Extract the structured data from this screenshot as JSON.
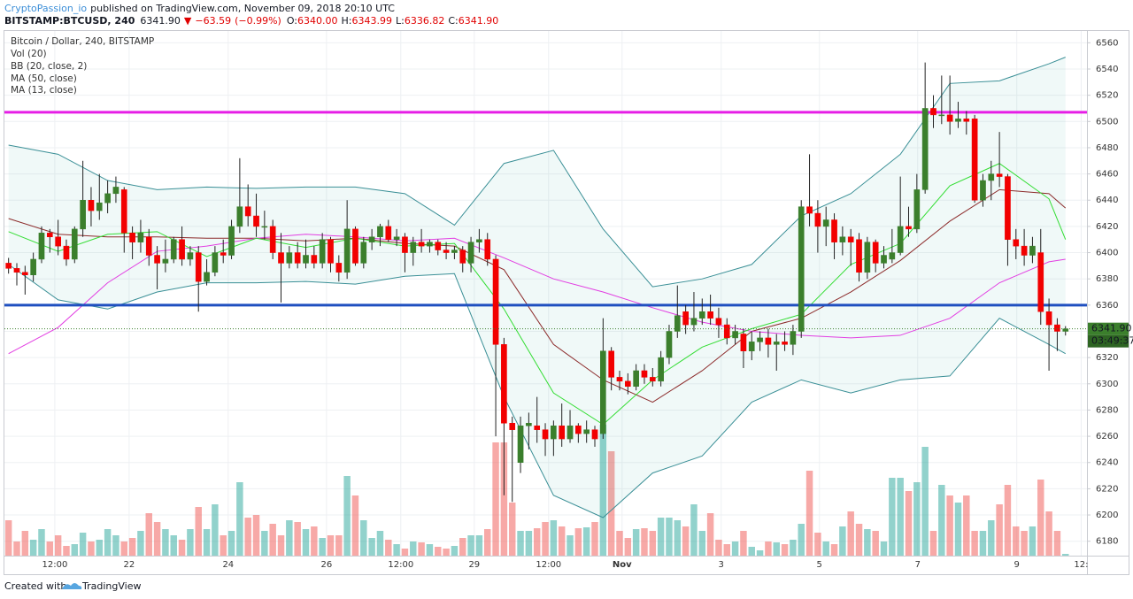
{
  "header": {
    "author": "CryptoPassion_io",
    "published": "published on TradingView.com, November 09, 2018 20:10 UTC",
    "symbol": "BITSTAMP:BTCUSD, 240",
    "price": {
      "value": 6341.9,
      "label": "6341.90"
    },
    "arrow": "▼",
    "change": {
      "value": -63.59,
      "label": "−63.59"
    },
    "change_pct": {
      "value": -0.99,
      "label": "(−0.99%)"
    },
    "ohlc": [
      {
        "key": "O:",
        "value": 6340,
        "label": "6340.00"
      },
      {
        "key": "H:",
        "value": 6343.99,
        "label": "6343.99"
      },
      {
        "key": "L:",
        "value": 6336.82,
        "label": "6336.82"
      },
      {
        "key": "C:",
        "value": 6341.9,
        "label": "6341.90"
      }
    ]
  },
  "footer": {
    "created": "Created with",
    "brand": "TradingView"
  },
  "chart_data": {
    "type": "candlestick",
    "title": "Bitcoin / Dollar, 240, BITSTAMP",
    "up_color": "#3b7f2c",
    "down_color": "#f20000",
    "grid": true,
    "ylim": [
      6169,
      6569
    ],
    "yticks": [
      6180,
      6200,
      6220,
      6240,
      6260,
      6280,
      6300,
      6320,
      6340,
      6360,
      6380,
      6400,
      6420,
      6440,
      6460,
      6480,
      6500,
      6520,
      6540,
      6560
    ],
    "xlim": [
      -0.5,
      130.6
    ],
    "xticks": [
      {
        "value": 5.6,
        "label": "12:00"
      },
      {
        "value": 14.6,
        "label": "22"
      },
      {
        "value": 26.6,
        "label": "24"
      },
      {
        "value": 38.5,
        "label": "26"
      },
      {
        "value": 47.5,
        "label": "12:00"
      },
      {
        "value": 56.4,
        "label": "29"
      },
      {
        "value": 65.4,
        "label": "12:00"
      },
      {
        "value": 74.3,
        "label": "Nov"
      },
      {
        "value": 86.3,
        "label": "3"
      },
      {
        "value": 98.2,
        "label": "5"
      },
      {
        "value": 110.1,
        "label": "7"
      },
      {
        "value": 122.1,
        "label": "9"
      },
      {
        "value": 129.9,
        "label": "12:"
      }
    ],
    "open": [
      6392,
      6388,
      6385,
      6383,
      6395,
      6415,
      6412,
      6405,
      6395,
      6418,
      6440,
      6432,
      6438,
      6445,
      6448,
      6415,
      6408,
      6412,
      6398,
      6392,
      6395,
      6410,
      6395,
      6400,
      6378,
      6385,
      6400,
      6398,
      6420,
      6435,
      6428,
      6420,
      6420,
      6400,
      6392,
      6400,
      6392,
      6398,
      6392,
      6410,
      6392,
      6385,
      6418,
      6392,
      6408,
      6412,
      6420,
      6410,
      6412,
      6400,
      6408,
      6405,
      6408,
      6402,
      6400,
      6402,
      6392,
      6408,
      6410,
      6395,
      6330,
      6270,
      6240,
      6268,
      6268,
      6265,
      6258,
      6268,
      6258,
      6268,
      6262,
      6265,
      6262,
      6325,
      6305,
      6302,
      6298,
      6310,
      6305,
      6302,
      6320,
      6340,
      6355,
      6345,
      6350,
      6355,
      6350,
      6345,
      6335,
      6338,
      6325,
      6332,
      6335,
      6330,
      6332,
      6330,
      6340,
      6435,
      6430,
      6420,
      6425,
      6408,
      6412,
      6410,
      6385,
      6408,
      6392,
      6395,
      6400,
      6420,
      6418,
      6448,
      6510,
      6505,
      6505,
      6500,
      6502,
      6502,
      6440,
      6455,
      6460,
      6458,
      6410,
      6405,
      6398,
      6400,
      6355,
      6345,
      6340
    ],
    "high": [
      6396,
      6392,
      6390,
      6400,
      6420,
      6418,
      6425,
      6410,
      6420,
      6470,
      6450,
      6460,
      6455,
      6458,
      6450,
      6420,
      6425,
      6418,
      6405,
      6410,
      6412,
      6420,
      6405,
      6405,
      6395,
      6405,
      6410,
      6425,
      6472,
      6452,
      6445,
      6432,
      6425,
      6415,
      6405,
      6408,
      6410,
      6405,
      6415,
      6412,
      6398,
      6440,
      6420,
      6412,
      6418,
      6422,
      6425,
      6418,
      6415,
      6412,
      6418,
      6410,
      6410,
      6408,
      6405,
      6405,
      6412,
      6418,
      6415,
      6398,
      6335,
      6275,
      6275,
      6278,
      6290,
      6270,
      6272,
      6285,
      6280,
      6270,
      6272,
      6268,
      6350,
      6328,
      6310,
      6308,
      6315,
      6315,
      6312,
      6325,
      6345,
      6375,
      6360,
      6370,
      6365,
      6368,
      6358,
      6350,
      6345,
      6342,
      6340,
      6340,
      6342,
      6338,
      6340,
      6345,
      6440,
      6475,
      6440,
      6435,
      6430,
      6420,
      6418,
      6415,
      6412,
      6410,
      6405,
      6418,
      6458,
      6435,
      6460,
      6545,
      6520,
      6535,
      6535,
      6515,
      6508,
      6505,
      6460,
      6470,
      6492,
      6460,
      6418,
      6418,
      6412,
      6418,
      6365,
      6350,
      6343.99
    ],
    "low": [
      6384,
      6375,
      6368,
      6378,
      6392,
      6400,
      6398,
      6390,
      6392,
      6412,
      6420,
      6425,
      6430,
      6438,
      6400,
      6395,
      6400,
      6390,
      6372,
      6385,
      6392,
      6390,
      6390,
      6355,
      6375,
      6382,
      6392,
      6395,
      6415,
      6420,
      6412,
      6410,
      6395,
      6362,
      6388,
      6388,
      6388,
      6388,
      6388,
      6385,
      6378,
      6380,
      6390,
      6388,
      6402,
      6405,
      6408,
      6405,
      6385,
      6390,
      6400,
      6400,
      6398,
      6395,
      6395,
      6385,
      6385,
      6400,
      6390,
      6260,
      6215,
      6210,
      6232,
      6250,
      6255,
      6245,
      6245,
      6252,
      6255,
      6255,
      6255,
      6252,
      6258,
      6295,
      6295,
      6292,
      6295,
      6300,
      6298,
      6298,
      6315,
      6335,
      6338,
      6340,
      6345,
      6345,
      6335,
      6330,
      6330,
      6312,
      6318,
      6325,
      6320,
      6310,
      6325,
      6322,
      6335,
      6420,
      6400,
      6405,
      6395,
      6398,
      6390,
      6378,
      6380,
      6385,
      6388,
      6392,
      6398,
      6412,
      6415,
      6445,
      6495,
      6498,
      6490,
      6495,
      6490,
      6438,
      6435,
      6440,
      6450,
      6390,
      6395,
      6390,
      6392,
      6345,
      6310,
      6325,
      6336.82
    ],
    "close": [
      6388,
      6385,
      6383,
      6395,
      6415,
      6412,
      6405,
      6395,
      6418,
      6440,
      6432,
      6438,
      6445,
      6450,
      6415,
      6408,
      6415,
      6398,
      6392,
      6395,
      6410,
      6395,
      6400,
      6378,
      6385,
      6400,
      6398,
      6420,
      6435,
      6428,
      6420,
      6420,
      6400,
      6392,
      6400,
      6392,
      6398,
      6392,
      6410,
      6392,
      6385,
      6418,
      6392,
      6408,
      6412,
      6420,
      6410,
      6412,
      6400,
      6408,
      6405,
      6408,
      6402,
      6400,
      6402,
      6392,
      6408,
      6410,
      6395,
      6330,
      6270,
      6265,
      6268,
      6270,
      6265,
      6258,
      6268,
      6258,
      6268,
      6262,
      6265,
      6258,
      6325,
      6305,
      6302,
      6298,
      6310,
      6305,
      6302,
      6320,
      6340,
      6352,
      6345,
      6350,
      6355,
      6350,
      6345,
      6335,
      6340,
      6325,
      6332,
      6335,
      6330,
      6332,
      6330,
      6340,
      6435,
      6430,
      6420,
      6425,
      6408,
      6412,
      6408,
      6385,
      6408,
      6392,
      6398,
      6400,
      6420,
      6418,
      6448,
      6510,
      6505,
      6505,
      6500,
      6502,
      6500,
      6440,
      6455,
      6460,
      6458,
      6410,
      6405,
      6398,
      6405,
      6355,
      6345,
      6340,
      6341.9
    ],
    "volume": {
      "name": "Vol (20)",
      "up_color": "rgba(38,166,154,0.5)",
      "down_color": "rgba(239,83,80,0.5)",
      "values": [
        40,
        16,
        28,
        18,
        30,
        16,
        23,
        11,
        13,
        26,
        16,
        18,
        30,
        23,
        16,
        20,
        28,
        48,
        38,
        30,
        23,
        18,
        30,
        55,
        30,
        58,
        23,
        28,
        83,
        43,
        46,
        28,
        36,
        23,
        40,
        38,
        30,
        33,
        20,
        23,
        23,
        90,
        68,
        40,
        20,
        28,
        18,
        13,
        8,
        16,
        15,
        13,
        10,
        8,
        11,
        20,
        23,
        23,
        30,
        128,
        128,
        60,
        28,
        28,
        31,
        38,
        40,
        33,
        23,
        31,
        32,
        38,
        148,
        118,
        28,
        20,
        30,
        31,
        28,
        43,
        43,
        40,
        33,
        58,
        28,
        48,
        18,
        13,
        16,
        28,
        10,
        6,
        16,
        15,
        13,
        18,
        36,
        96,
        26,
        16,
        13,
        33,
        50,
        36,
        30,
        28,
        16,
        88,
        88,
        73,
        83,
        123,
        28,
        80,
        68,
        60,
        68,
        28,
        28,
        40,
        58,
        80,
        33,
        28,
        33,
        86,
        50,
        28,
        2
      ]
    },
    "overlay_x": [
      0,
      6,
      12,
      18,
      24,
      30,
      36,
      42,
      48,
      54,
      60,
      66,
      72,
      78,
      84,
      90,
      96,
      102,
      108,
      114,
      120,
      126,
      128
    ],
    "bollinger": {
      "name": "BB (20, close, 2)",
      "band_color": "#3a8f96",
      "basis_color": "#8c2b2b",
      "fill": "rgba(38,166,154,0.07)",
      "upper": [
        6482,
        6475,
        6455,
        6448,
        6450,
        6449,
        6450,
        6450,
        6445,
        6421,
        6468,
        6478,
        6418,
        6374,
        6380,
        6391,
        6428,
        6445,
        6475,
        6529,
        6531,
        6544,
        6549
      ],
      "basis": [
        6426,
        6414,
        6412,
        6412,
        6411,
        6411,
        6409,
        6411,
        6407,
        6405,
        6387,
        6330,
        6303,
        6286,
        6310,
        6340,
        6350,
        6370,
        6394,
        6424,
        6448,
        6445,
        6434
      ],
      "lower": [
        6391,
        6364,
        6357,
        6370,
        6377,
        6377,
        6378,
        6376,
        6382,
        6384,
        6290,
        6215,
        6198,
        6232,
        6245,
        6286,
        6303,
        6293,
        6303,
        6306,
        6350,
        6330,
        6323
      ]
    },
    "moving_averages": [
      {
        "name": "MA (50, close)",
        "color": "#e23ee2",
        "values": [
          6323,
          6343,
          6377,
          6401,
          6405,
          6411,
          6414,
          6412,
          6409,
          6411,
          6396,
          6380,
          6370,
          6358,
          6347,
          6340,
          6337,
          6335,
          6337,
          6350,
          6377,
          6393,
          6395
        ]
      },
      {
        "name": "MA (13, close)",
        "color": "#33dd33",
        "values": [
          6416,
          6401,
          6414,
          6416,
          6397,
          6411,
          6404,
          6411,
          6405,
          6407,
          6357,
          6293,
          6269,
          6303,
          6328,
          6342,
          6353,
          6391,
          6407,
          6451,
          6468,
          6441,
          6410
        ]
      }
    ],
    "hlines": [
      {
        "value": 6507,
        "color": "#e61ee6"
      },
      {
        "value": 6360,
        "color": "#1f4fc0"
      }
    ],
    "last_price": {
      "value": 6341.9,
      "label": "6341.90",
      "countdown": "03:49:37",
      "color": "#3b7f2c"
    }
  }
}
